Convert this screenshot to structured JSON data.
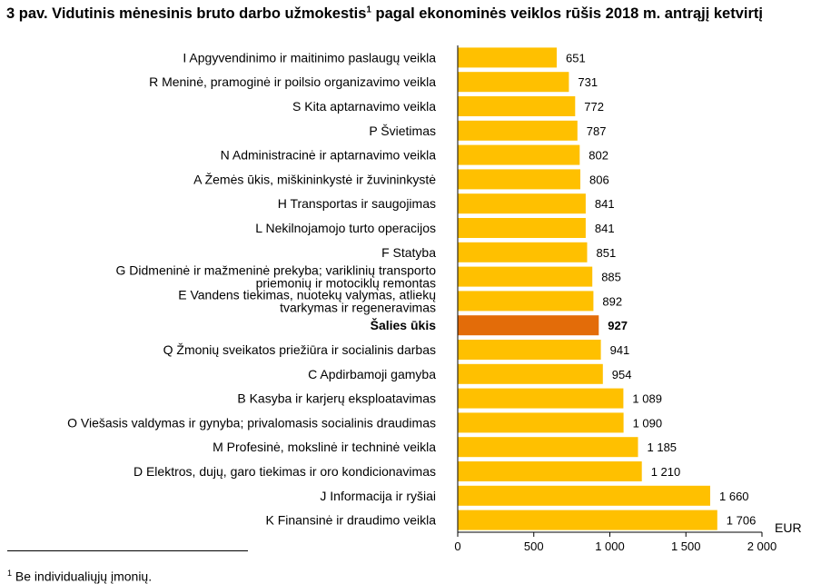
{
  "title": {
    "text_before": "3 pav. Vidutinis mėnesinis bruto darbo užmokestis",
    "footnote_ref": "1",
    "text_after": " pagal ekonominės veiklos rūšis 2018 m. antrąjį ketvirtį"
  },
  "footnote": {
    "mark": "1",
    "text": " Be individualiųjų įmonių."
  },
  "colors": {
    "bar": "#ffc000",
    "highlight": "#e36c09",
    "axis": "#000000"
  },
  "chart_data": {
    "type": "bar",
    "orientation": "horizontal",
    "unit_label": "EUR",
    "xlim": [
      0,
      2000
    ],
    "x_ticks": [
      0,
      500,
      1000,
      1500,
      2000
    ],
    "x_tick_labels": [
      "0",
      "500",
      "1 000",
      "1 500",
      "2 000"
    ],
    "grid": false,
    "highlight_category": "Šalies ūkis",
    "categories": [
      [
        "I Apgyvendinimo ir maitinimo paslaugų veikla"
      ],
      [
        "R Meninė, pramoginė ir poilsio organizavimo veikla"
      ],
      [
        "S Kita aptarnavimo veikla"
      ],
      [
        "P Švietimas"
      ],
      [
        "N Administracinė ir aptarnavimo veikla"
      ],
      [
        "A Žemės ūkis, miškininkystė ir žuvininkystė"
      ],
      [
        "H Transportas ir saugojimas"
      ],
      [
        "L Nekilnojamojo turto operacijos"
      ],
      [
        "F Statyba"
      ],
      [
        "G Didmeninė ir mažmeninė prekyba; variklinių transporto",
        "priemonių ir motociklų remontas"
      ],
      [
        "E Vandens tiekimas, nuotekų valymas, atliekų",
        "tvarkymas ir regeneravimas"
      ],
      [
        "Šalies ūkis"
      ],
      [
        "Q Žmonių sveikatos priežiūra ir socialinis darbas"
      ],
      [
        "C Apdirbamoji gamyba"
      ],
      [
        "B Kasyba ir karjerų eksploatavimas"
      ],
      [
        "O Viešasis valdymas ir gynyba; privalomasis socialinis draudimas"
      ],
      [
        "M Profesinė, mokslinė ir techninė veikla"
      ],
      [
        "D Elektros, dujų, garo tiekimas ir oro kondicionavimas"
      ],
      [
        "J Informacija ir ryšiai"
      ],
      [
        "K Finansinė ir draudimo veikla"
      ]
    ],
    "values": [
      651,
      731,
      772,
      787,
      802,
      806,
      841,
      841,
      851,
      885,
      892,
      927,
      941,
      954,
      1089,
      1090,
      1185,
      1210,
      1660,
      1706
    ],
    "value_labels": [
      "651",
      "731",
      "772",
      "787",
      "802",
      "806",
      "841",
      "841",
      "851",
      "885",
      "892",
      "927",
      "941",
      "954",
      "1 089",
      "1 090",
      "1 185",
      "1 210",
      "1 660",
      "1 706"
    ]
  }
}
